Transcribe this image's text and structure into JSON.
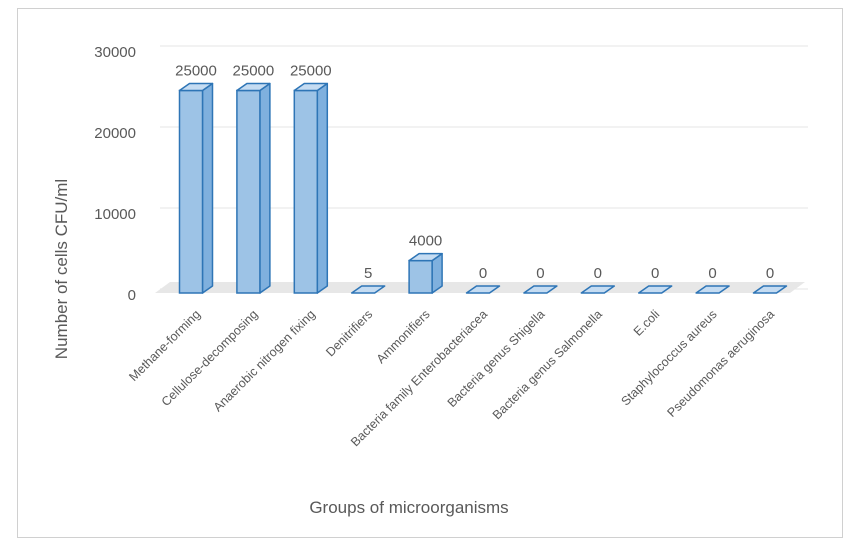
{
  "chart_data": {
    "type": "bar",
    "style": "3d-column",
    "xlabel": "Groups of microorganisms",
    "ylabel": "Number of cells CFU/ml",
    "ylim": [
      0,
      30000
    ],
    "yticks": [
      "0",
      "10000",
      "20000",
      "30000"
    ],
    "grid": true,
    "legend": "none",
    "categories": [
      "Methane-forming",
      "Cellulose-decomposing",
      "Anaerobic nitrogen fixing",
      "Denitrifiers",
      "Ammonifiers",
      "Bacteria family Enterobacteriacea",
      "Bacteria genus Shigella",
      "Bacteria genus Salmonella",
      "E.coli",
      "Staphylococcus aureus",
      "Pseudomonas aeruginosa"
    ],
    "values": [
      25000,
      25000,
      25000,
      5,
      4000,
      0,
      0,
      0,
      0,
      0,
      0
    ],
    "data_labels": [
      "25000",
      "25000",
      "25000",
      "5",
      "4000",
      "0",
      "0",
      "0",
      "0",
      "0",
      "0"
    ],
    "colors": {
      "bar_fill": "#9dc3e6",
      "bar_top": "#c5dcf2",
      "bar_side": "#7fb0de",
      "bar_stroke": "#2e75b6",
      "grid": "#e6e6e6",
      "floor": "#e7e7e7"
    }
  }
}
